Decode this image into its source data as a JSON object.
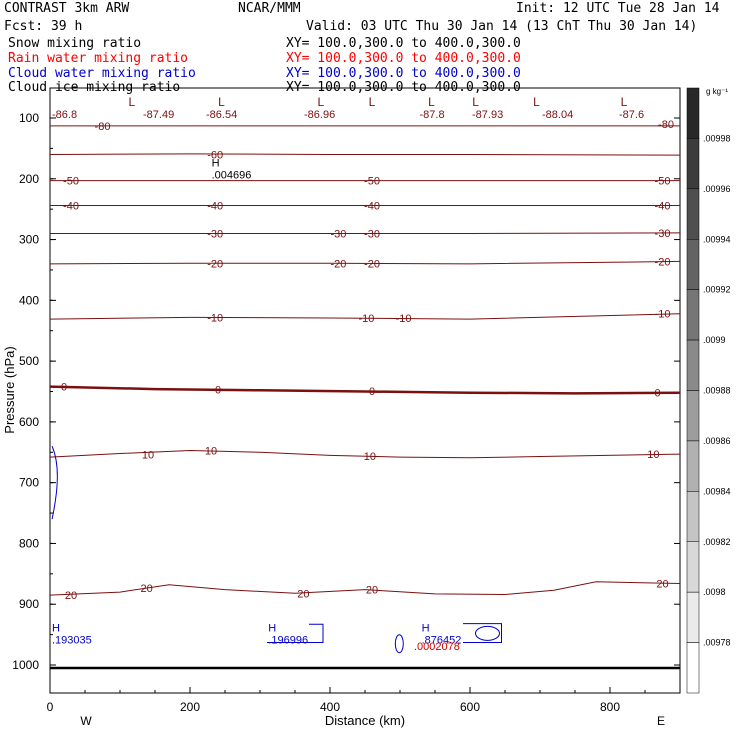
{
  "header": {
    "model": "CONTRAST  3km ARW",
    "fcst": "Fcst:    39 h",
    "center": "NCAR/MMM",
    "init": "Init: 12 UTC Tue 28 Jan 14",
    "valid": "Valid: 03 UTC Thu 30 Jan 14 (13 ChT Thu 30 Jan 14)"
  },
  "fields": [
    {
      "name": "Snow mixing ratio",
      "xy": "XY= 100.0,300.0 to 400.0,300.0",
      "color": "#000000"
    },
    {
      "name": "Rain water mixing ratio",
      "xy": "XY= 100.0,300.0 to 400.0,300.0",
      "color": "#ff0000"
    },
    {
      "name": "Cloud water mixing ratio",
      "xy": "XY= 100.0,300.0 to 400.0,300.0",
      "color": "#0000cc"
    },
    {
      "name": "Cloud ice mixing ratio",
      "xy": "XY= 100.0,300.0 to 400.0,300.0",
      "color": "#000000"
    }
  ],
  "chart_data": {
    "type": "line",
    "xlabel": "Distance (km)",
    "ylabel": "Pressure (hPa)",
    "xlim": [
      0,
      900
    ],
    "ylim": [
      1050,
      55
    ],
    "xticks": [
      "0",
      "200",
      "400",
      "600",
      "800"
    ],
    "xtick_values": [
      0,
      200,
      400,
      600,
      800
    ],
    "yticks": [
      "100",
      "200",
      "300",
      "400",
      "500",
      "600",
      "700",
      "800",
      "900",
      "1000"
    ],
    "ytick_values": [
      100,
      200,
      300,
      400,
      500,
      600,
      700,
      800,
      900,
      1000
    ],
    "direction_labels": {
      "left": "W",
      "right": "E"
    },
    "contour_color": "#7a1010",
    "cloud_color": "#0000cc",
    "isotherms": [
      {
        "level": -80,
        "p": [
          [
            0,
            113
          ],
          [
            200,
            113
          ],
          [
            400,
            113
          ],
          [
            600,
            113
          ],
          [
            900,
            113
          ]
        ]
      },
      {
        "level": -60,
        "p": [
          [
            0,
            160
          ],
          [
            200,
            159
          ],
          [
            400,
            160
          ],
          [
            600,
            160
          ],
          [
            900,
            161
          ]
        ]
      },
      {
        "level": -50,
        "p": [
          [
            0,
            203
          ],
          [
            200,
            203
          ],
          [
            400,
            203
          ],
          [
            600,
            203
          ],
          [
            900,
            203
          ]
        ]
      },
      {
        "level": -40,
        "p": [
          [
            0,
            244
          ],
          [
            200,
            244
          ],
          [
            400,
            244
          ],
          [
            600,
            244
          ],
          [
            900,
            244
          ]
        ]
      },
      {
        "level": -30,
        "p": [
          [
            0,
            290
          ],
          [
            200,
            290
          ],
          [
            400,
            290
          ],
          [
            600,
            290
          ],
          [
            900,
            289
          ]
        ]
      },
      {
        "level": -20,
        "p": [
          [
            0,
            340
          ],
          [
            200,
            339
          ],
          [
            400,
            339
          ],
          [
            600,
            340
          ],
          [
            900,
            336
          ]
        ]
      },
      {
        "level": -10,
        "p": [
          [
            0,
            431
          ],
          [
            200,
            428
          ],
          [
            400,
            429
          ],
          [
            600,
            431
          ],
          [
            900,
            422
          ]
        ]
      },
      {
        "level": 0,
        "p": [
          [
            0,
            542
          ],
          [
            150,
            546
          ],
          [
            300,
            548
          ],
          [
            450,
            550
          ],
          [
            600,
            552
          ],
          [
            750,
            553
          ],
          [
            900,
            552
          ]
        ]
      },
      {
        "level": 10,
        "p": [
          [
            0,
            658
          ],
          [
            100,
            652
          ],
          [
            200,
            647
          ],
          [
            300,
            650
          ],
          [
            400,
            655
          ],
          [
            500,
            658
          ],
          [
            600,
            659
          ],
          [
            700,
            657
          ],
          [
            900,
            653
          ]
        ]
      },
      {
        "level": 20,
        "p": [
          [
            0,
            885
          ],
          [
            100,
            880
          ],
          [
            170,
            868
          ],
          [
            250,
            876
          ],
          [
            350,
            882
          ],
          [
            450,
            876
          ],
          [
            550,
            883
          ],
          [
            650,
            884
          ],
          [
            720,
            877
          ],
          [
            780,
            863
          ],
          [
            900,
            866
          ]
        ]
      }
    ],
    "contour_labels": [
      {
        "text": "-80",
        "x": 75,
        "p": 113
      },
      {
        "text": "-80",
        "x": 880,
        "p": 110
      },
      {
        "text": "-60",
        "x": 236,
        "p": 160
      },
      {
        "text": "-50",
        "x": 30,
        "p": 203
      },
      {
        "text": "-50",
        "x": 460,
        "p": 203
      },
      {
        "text": "-50",
        "x": 875,
        "p": 203
      },
      {
        "text": "-40",
        "x": 30,
        "p": 244
      },
      {
        "text": "-40",
        "x": 236,
        "p": 244
      },
      {
        "text": "-40",
        "x": 460,
        "p": 244
      },
      {
        "text": "-40",
        "x": 875,
        "p": 244
      },
      {
        "text": "-30",
        "x": 236,
        "p": 290
      },
      {
        "text": "-30",
        "x": 412,
        "p": 290
      },
      {
        "text": "-30",
        "x": 460,
        "p": 290
      },
      {
        "text": "-30",
        "x": 875,
        "p": 289
      },
      {
        "text": "-20",
        "x": 236,
        "p": 339
      },
      {
        "text": "-20",
        "x": 412,
        "p": 339
      },
      {
        "text": "-20",
        "x": 460,
        "p": 339
      },
      {
        "text": "-20",
        "x": 875,
        "p": 336
      },
      {
        "text": "-10",
        "x": 236,
        "p": 428
      },
      {
        "text": "-10",
        "x": 452,
        "p": 429
      },
      {
        "text": "-10",
        "x": 505,
        "p": 429
      },
      {
        "text": "-10",
        "x": 875,
        "p": 422
      },
      {
        "text": "0",
        "x": 20,
        "p": 542
      },
      {
        "text": "0",
        "x": 240,
        "p": 547
      },
      {
        "text": "0",
        "x": 460,
        "p": 549
      },
      {
        "text": "0",
        "x": 868,
        "p": 552
      },
      {
        "text": "10",
        "x": 140,
        "p": 654
      },
      {
        "text": "10",
        "x": 230,
        "p": 647
      },
      {
        "text": "10",
        "x": 457,
        "p": 656
      },
      {
        "text": "10",
        "x": 862,
        "p": 653
      },
      {
        "text": "20",
        "x": 30,
        "p": 885
      },
      {
        "text": "20",
        "x": 138,
        "p": 873
      },
      {
        "text": "20",
        "x": 362,
        "p": 882
      },
      {
        "text": "20",
        "x": 460,
        "p": 876
      },
      {
        "text": "20",
        "x": 875,
        "p": 866
      }
    ],
    "lows": [
      {
        "x": 117,
        "value": "-86.8",
        "lx": 0
      },
      {
        "x": 245,
        "value": "-87.49",
        "lx": 130
      },
      {
        "x": 387,
        "value": "-86.54",
        "lx": 220
      },
      {
        "x": 460,
        "value": "-86.96",
        "lx": 360
      },
      {
        "x": 545,
        "value": "-87.8",
        "lx": 525
      },
      {
        "x": 608,
        "value": "-87.93",
        "lx": 600
      },
      {
        "x": 695,
        "value": "-88.04",
        "lx": 700
      },
      {
        "x": 820,
        "value": "-87.6",
        "lx": 810
      }
    ],
    "highs": [
      {
        "x": 228,
        "p": 190,
        "value": ".004696",
        "color": "#000000"
      },
      {
        "x": 0,
        "p": 955,
        "value": ".193035",
        "color": "#0000cc"
      },
      {
        "x": 309,
        "p": 955,
        "value": ".196996",
        "color": "#0000cc"
      },
      {
        "x": 528,
        "p": 955,
        "value": ".876452",
        "color": "#0000cc"
      }
    ],
    "low_value_extra": ".0002078",
    "colorbar": {
      "unit": "g kg⁻¹",
      "labels": [
        ".00998",
        ".00996",
        ".00994",
        ".00992",
        ".0099",
        ".00988",
        ".00986",
        ".00984",
        ".00982",
        ".0098",
        ".00978"
      ]
    }
  }
}
